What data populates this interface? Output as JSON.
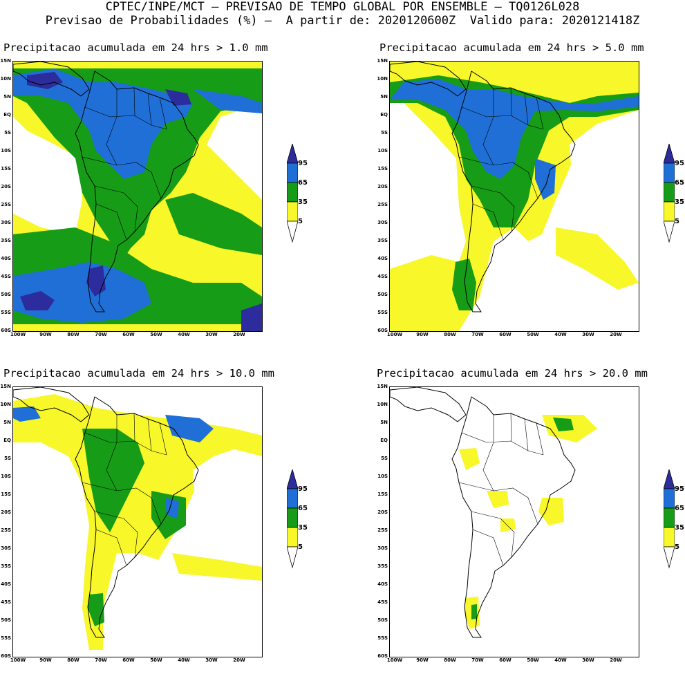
{
  "header": {
    "line1": "CPTEC/INPE/MCT — PREVISAO DE TEMPO GLOBAL POR ENSEMBLE — TQ0126L028",
    "line2": "Previsao de Probabilidades (%) —  A partir de: 2020120600Z  Valido para: 2020121418Z"
  },
  "panels": [
    {
      "title": "Precipitacao acumulada em 24 hrs > 1.0 mm",
      "threshold_mm": 1.0
    },
    {
      "title": "Precipitacao acumulada em 24 hrs > 5.0 mm",
      "threshold_mm": 5.0
    },
    {
      "title": "Precipitacao acumulada em 24 hrs > 10.0 mm",
      "threshold_mm": 10.0
    },
    {
      "title": "Precipitacao acumulada em 24 hrs > 20.0 mm",
      "threshold_mm": 20.0
    }
  ],
  "axes": {
    "lat_labels": [
      "15N",
      "10N",
      "5N",
      "EQ",
      "5S",
      "10S",
      "15S",
      "20S",
      "25S",
      "30S",
      "35S",
      "40S",
      "45S",
      "50S",
      "55S",
      "60S"
    ],
    "lon_labels": [
      "100W",
      "90W",
      "80W",
      "70W",
      "60W",
      "50W",
      "40W",
      "30W",
      "20W"
    ]
  },
  "legend": {
    "labels": [
      "95",
      "65",
      "35",
      "5"
    ],
    "colors": {
      "c95": "#2c2c9c",
      "c65": "#1f6fd6",
      "c35": "#169c16",
      "c5": "#f7f72a",
      "c0": "#ffffff"
    }
  },
  "map_colors": {
    "blue": "#1f6fd6",
    "navy": "#2c2c9c",
    "green": "#169c16",
    "yellow": "#f7f72a",
    "outline": "#000000"
  }
}
